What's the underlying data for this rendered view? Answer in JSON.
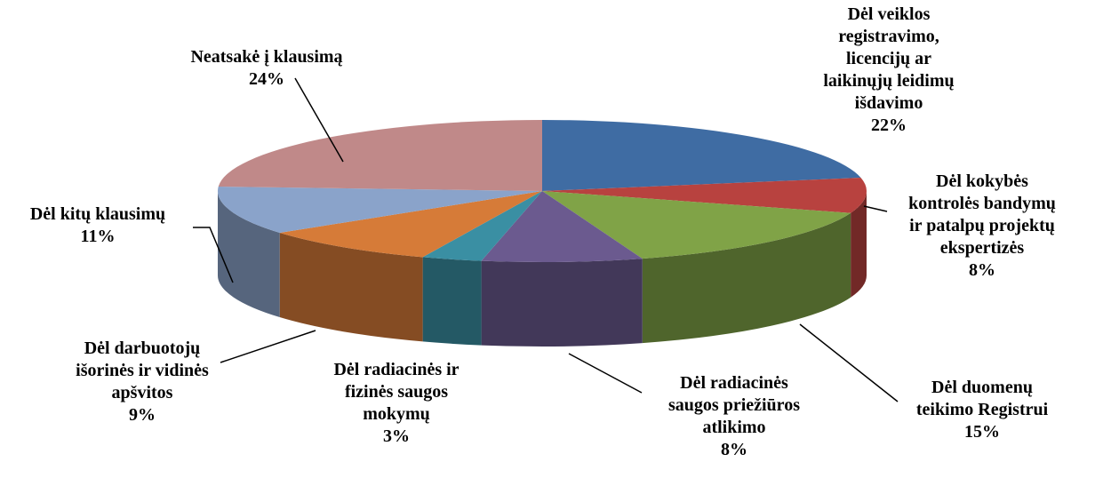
{
  "chart_data": {
    "type": "pie3d",
    "categories": [
      "Dėl veiklos\nregistravimo,\nlicencijų ar\nlaikinųjų leidimų\nišdavimo",
      "Dėl kokybės\nkontrolės bandymų\nir patalpų projektų\nekspertizės",
      "Dėl duomenų\nteikimo Registrui",
      "Dėl radiacinės\nsaugos priežiūros\natlikimo",
      "Dėl radiacinės ir\nfizinės saugos\nmokymų",
      "Dėl darbuotojų\nišorinės ir vidinės\napšvitos",
      "Dėl kitų klausimų",
      "Neatsakė į klausimą"
    ],
    "values": [
      22,
      8,
      15,
      8,
      3,
      9,
      11,
      24
    ],
    "value_labels": [
      "22%",
      "8%",
      "15%",
      "8%",
      "3%",
      "9%",
      "11%",
      "24%"
    ],
    "colors": [
      "#3f6ca3",
      "#b8423f",
      "#80a347",
      "#6b5a8f",
      "#3a8fa3",
      "#d67b38",
      "#8aa3ca",
      "#c08989"
    ]
  }
}
